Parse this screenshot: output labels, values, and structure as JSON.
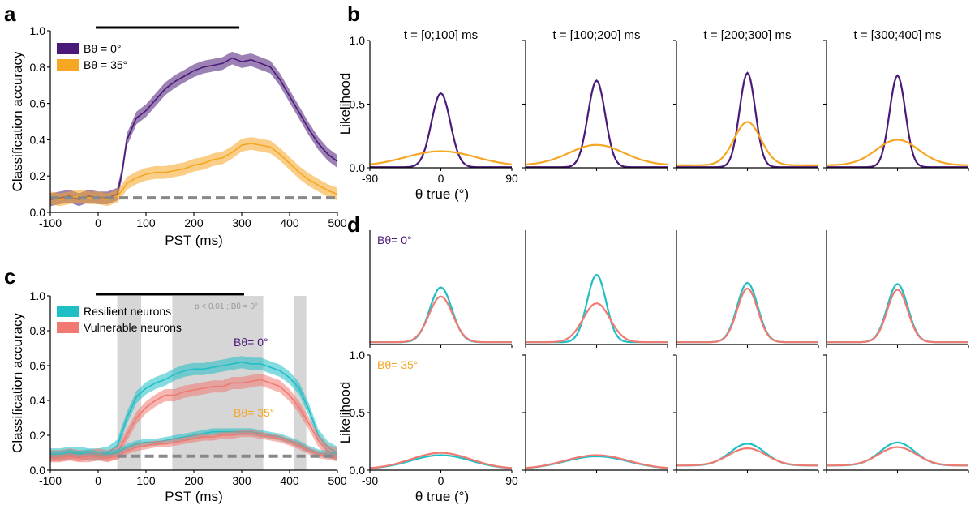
{
  "colors": {
    "purple": "#4b1a78",
    "orange": "#f5a623",
    "cyan": "#1fbfc6",
    "salmon": "#f07a72",
    "chance": "#888888",
    "shade": "#d6d6d6"
  },
  "panel_labels": {
    "a": "a",
    "b": "b",
    "c": "c",
    "d": "d"
  },
  "chart_data": [
    {
      "id": "a",
      "type": "line",
      "xlabel": "PST (ms)",
      "ylabel": "Classification accuracy",
      "xlim": [
        -100,
        500
      ],
      "ylim": [
        0,
        1
      ],
      "xticks": [
        "-100",
        "0",
        "100",
        "200",
        "300",
        "400",
        "500"
      ],
      "yticks": [
        "0.0",
        "0.2",
        "0.4",
        "0.6",
        "0.8",
        "1.0"
      ],
      "legend_position": "top-left",
      "stimulus_bar": [
        -5,
        295
      ],
      "chance_level": 0.08,
      "x": [
        -100,
        -80,
        -60,
        -40,
        -20,
        0,
        20,
        40,
        50,
        60,
        80,
        100,
        120,
        140,
        160,
        180,
        200,
        220,
        240,
        260,
        280,
        300,
        320,
        340,
        360,
        380,
        400,
        420,
        440,
        460,
        480,
        500
      ],
      "series": [
        {
          "name": "Bθ = 0°",
          "color_key": "purple",
          "values": [
            0.07,
            0.08,
            0.09,
            0.07,
            0.09,
            0.08,
            0.08,
            0.1,
            0.22,
            0.4,
            0.52,
            0.56,
            0.62,
            0.68,
            0.72,
            0.75,
            0.78,
            0.8,
            0.81,
            0.82,
            0.85,
            0.83,
            0.84,
            0.82,
            0.8,
            0.73,
            0.64,
            0.55,
            0.46,
            0.38,
            0.32,
            0.28
          ],
          "band": 0.035
        },
        {
          "name": "Bθ = 35°",
          "color_key": "orange",
          "values": [
            0.08,
            0.07,
            0.08,
            0.09,
            0.08,
            0.08,
            0.07,
            0.09,
            0.12,
            0.16,
            0.19,
            0.21,
            0.22,
            0.22,
            0.23,
            0.24,
            0.26,
            0.27,
            0.29,
            0.3,
            0.33,
            0.37,
            0.38,
            0.37,
            0.36,
            0.32,
            0.27,
            0.22,
            0.18,
            0.15,
            0.12,
            0.1
          ],
          "band": 0.035
        }
      ]
    },
    {
      "id": "b",
      "type": "line",
      "xlabel": "θ true (°)",
      "ylabel": "Likelihood",
      "xlim": [
        -90,
        90
      ],
      "ylim": [
        0,
        1
      ],
      "xticks": [
        "-90",
        "0",
        "90"
      ],
      "yticks": [
        "0.0",
        "0.5",
        "1.0"
      ],
      "titles": [
        "t = [0;100] ms",
        "t = [100;200] ms",
        "t = [200;300] ms",
        "t = [300;400] ms"
      ],
      "curve_model": "baseline + amplitude·exp(-θ²/(2·width²))",
      "series": [
        {
          "name": "Bθ = 0°",
          "color_key": "purple",
          "amplitude": [
            0.58,
            0.68,
            0.74,
            0.72
          ],
          "width": [
            12,
            11,
            10,
            10
          ],
          "baseline": [
            0.005,
            0.005,
            0.005,
            0.005
          ]
        },
        {
          "name": "Bθ = 35°",
          "color_key": "orange",
          "amplitude": [
            0.12,
            0.16,
            0.34,
            0.2
          ],
          "width": [
            45,
            35,
            17,
            27
          ],
          "baseline": [
            0.01,
            0.02,
            0.02,
            0.02
          ]
        }
      ]
    },
    {
      "id": "c",
      "type": "line",
      "xlabel": "PST (ms)",
      "ylabel": "Classification accuracy",
      "xlim": [
        -100,
        500
      ],
      "ylim": [
        0,
        1
      ],
      "xticks": [
        "-100",
        "0",
        "100",
        "200",
        "300",
        "400",
        "500"
      ],
      "yticks": [
        "0.0",
        "0.2",
        "0.4",
        "0.6",
        "0.8",
        "1.0"
      ],
      "legend_position": "top-left",
      "stimulus_bar": [
        -5,
        305
      ],
      "significance_label": "p < 0.01 ; Bθ = 0°",
      "significance_windows": [
        [
          40,
          90
        ],
        [
          155,
          345
        ],
        [
          410,
          435
        ]
      ],
      "chance_level": 0.08,
      "group_labels": [
        {
          "text": "Bθ= 0°",
          "color_key": "purple"
        },
        {
          "text": "Bθ= 35°",
          "color_key": "orange"
        }
      ],
      "x": [
        -100,
        -80,
        -60,
        -40,
        -20,
        0,
        20,
        40,
        60,
        80,
        100,
        120,
        140,
        160,
        180,
        200,
        220,
        240,
        260,
        280,
        300,
        320,
        340,
        360,
        380,
        400,
        420,
        440,
        460,
        480,
        500
      ],
      "series": [
        {
          "name": "Resilient neurons",
          "group": "Bθ = 0°",
          "color_key": "cyan",
          "values": [
            0.09,
            0.09,
            0.1,
            0.1,
            0.09,
            0.09,
            0.1,
            0.14,
            0.3,
            0.42,
            0.47,
            0.5,
            0.52,
            0.55,
            0.57,
            0.58,
            0.58,
            0.59,
            0.6,
            0.61,
            0.62,
            0.61,
            0.61,
            0.59,
            0.57,
            0.53,
            0.47,
            0.35,
            0.2,
            0.13,
            0.1
          ],
          "band": 0.035
        },
        {
          "name": "Vulnerable neurons",
          "group": "Bθ = 0°",
          "color_key": "salmon",
          "values": [
            0.08,
            0.08,
            0.09,
            0.08,
            0.08,
            0.09,
            0.08,
            0.1,
            0.2,
            0.3,
            0.36,
            0.4,
            0.43,
            0.43,
            0.45,
            0.46,
            0.47,
            0.48,
            0.48,
            0.5,
            0.5,
            0.51,
            0.52,
            0.5,
            0.48,
            0.43,
            0.36,
            0.27,
            0.17,
            0.11,
            0.09
          ],
          "band": 0.035
        },
        {
          "name": "Resilient neurons",
          "group": "Bθ = 35°",
          "color_key": "cyan",
          "values": [
            0.09,
            0.09,
            0.1,
            0.09,
            0.1,
            0.09,
            0.09,
            0.1,
            0.13,
            0.15,
            0.16,
            0.16,
            0.17,
            0.18,
            0.19,
            0.2,
            0.21,
            0.22,
            0.22,
            0.22,
            0.22,
            0.22,
            0.21,
            0.2,
            0.19,
            0.17,
            0.15,
            0.12,
            0.1,
            0.09,
            0.08
          ],
          "band": 0.02
        },
        {
          "name": "Vulnerable neurons",
          "group": "Bθ = 35°",
          "color_key": "salmon",
          "values": [
            0.07,
            0.07,
            0.08,
            0.07,
            0.08,
            0.08,
            0.07,
            0.08,
            0.11,
            0.13,
            0.14,
            0.15,
            0.15,
            0.16,
            0.17,
            0.18,
            0.19,
            0.19,
            0.2,
            0.2,
            0.21,
            0.21,
            0.2,
            0.19,
            0.18,
            0.16,
            0.14,
            0.11,
            0.09,
            0.08,
            0.07
          ],
          "band": 0.02
        }
      ]
    },
    {
      "id": "d",
      "type": "line",
      "xlabel": "θ true (°)",
      "ylabel": "Likelihood",
      "xlim": [
        -90,
        90
      ],
      "ylim": [
        0,
        1
      ],
      "xticks": [
        "-90",
        "0",
        "90"
      ],
      "yticks": [
        "0.0",
        "0.5",
        "1.0"
      ],
      "row_labels": [
        {
          "text": "Bθ= 0°",
          "color_key": "purple"
        },
        {
          "text": "Bθ= 35°",
          "color_key": "orange"
        }
      ],
      "curve_model": "baseline + amplitude·exp(-θ²/(2·width²))",
      "rows": [
        {
          "name": "Bθ = 0°",
          "series": [
            {
              "name": "Resilient neurons",
              "color_key": "cyan",
              "amplitude": [
                0.48,
                0.59,
                0.52,
                0.51
              ],
              "width": [
                14,
                12,
                13,
                13
              ],
              "baseline": [
                0.02,
                0.02,
                0.02,
                0.02
              ]
            },
            {
              "name": "Vulnerable neurons",
              "color_key": "salmon",
              "amplitude": [
                0.4,
                0.34,
                0.47,
                0.46
              ],
              "width": [
                15,
                17,
                13,
                13
              ],
              "baseline": [
                0.02,
                0.02,
                0.02,
                0.02
              ]
            }
          ]
        },
        {
          "name": "Bθ = 35°",
          "series": [
            {
              "name": "Resilient neurons",
              "color_key": "cyan",
              "amplitude": [
                0.12,
                0.11,
                0.19,
                0.2
              ],
              "width": [
                38,
                40,
                22,
                22
              ],
              "baseline": [
                0.01,
                0.01,
                0.04,
                0.04
              ]
            },
            {
              "name": "Vulnerable neurons",
              "color_key": "salmon",
              "amplitude": [
                0.14,
                0.12,
                0.15,
                0.16
              ],
              "width": [
                38,
                40,
                24,
                24
              ],
              "baseline": [
                0.01,
                0.01,
                0.04,
                0.04
              ]
            }
          ]
        }
      ]
    }
  ]
}
